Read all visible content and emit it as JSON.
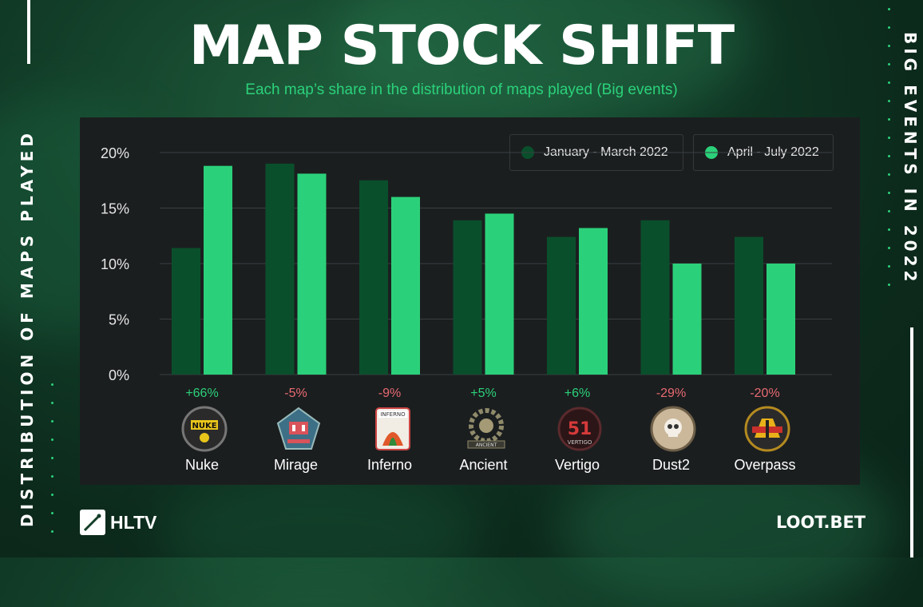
{
  "title": "MAP STOCK SHIFT",
  "subtitle": "Each map’s share in the distribution of maps played (Big events)",
  "side_left": "DISTRIBUTION OF MAPS PLAYED",
  "side_right": "BIG EVENTS IN 2022",
  "brands": {
    "hltv": "HLTV",
    "lootbet": "LOOT.BET"
  },
  "colors": {
    "series1": "#0a4f2c",
    "series2": "#2bd17a",
    "positive": "#2bd17a",
    "negative": "#e86a72",
    "panel": "#1b1e1f"
  },
  "chart_data": {
    "type": "bar",
    "title": "MAP STOCK SHIFT",
    "subtitle": "Each map’s share in the distribution of maps played (Big events)",
    "categories": [
      "Nuke",
      "Mirage",
      "Inferno",
      "Ancient",
      "Vertigo",
      "Dust2",
      "Overpass"
    ],
    "series": [
      {
        "name": "January - March 2022",
        "values": [
          11.4,
          19.0,
          17.5,
          13.9,
          12.4,
          13.9,
          12.4
        ]
      },
      {
        "name": "April - July 2022",
        "values": [
          18.8,
          18.1,
          16.0,
          14.5,
          13.2,
          10.0,
          10.0
        ]
      }
    ],
    "changes": [
      "+66%",
      "-5%",
      "-9%",
      "+5%",
      "+6%",
      "-29%",
      "-20%"
    ],
    "ylim": [
      0,
      20
    ],
    "yticks": [
      "0%",
      "5%",
      "10%",
      "15%",
      "20%"
    ],
    "grid": true,
    "legend": "top-right",
    "icons": [
      "nuke-icon",
      "mirage-icon",
      "inferno-icon",
      "ancient-icon",
      "vertigo-icon",
      "dust2-icon",
      "overpass-icon"
    ]
  }
}
